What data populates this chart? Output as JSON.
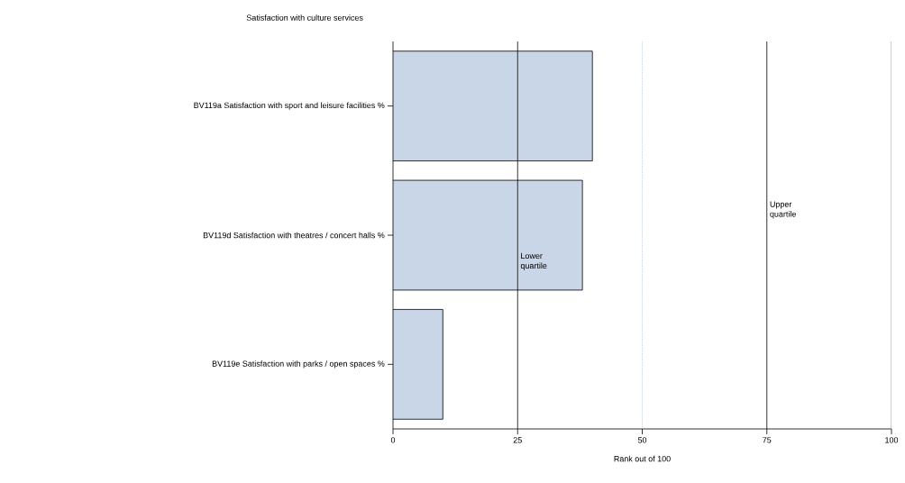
{
  "chart_data": {
    "type": "bar",
    "orientation": "horizontal",
    "title": "Satisfaction with culture services",
    "xlabel": "Rank out of 100",
    "categories": [
      "BV119a Satisfaction with sport and leisure facilities %",
      "BV119d Satisfaction with theatres / concert halls %",
      "BV119e Satisfaction with parks / open spaces %"
    ],
    "values": [
      40,
      38,
      10
    ],
    "color": "#c8d6e8",
    "xlim": [
      0,
      100
    ],
    "xticks": [
      0,
      25,
      50,
      75,
      100
    ],
    "grid": false,
    "ref_lines": [
      {
        "axis": "x",
        "value": 25,
        "label": "Lower quartile",
        "color": "#000000",
        "line_style": "solid"
      },
      {
        "axis": "x",
        "value": 50,
        "label": null,
        "color": "#a8c0d8",
        "line_style": "dotted"
      },
      {
        "axis": "x",
        "value": 75,
        "label": "Upper quartile",
        "color": "#000000",
        "line_style": "solid"
      },
      {
        "axis": "x",
        "value": 100,
        "label": null,
        "color": "#808080",
        "line_style": "solid"
      }
    ]
  }
}
